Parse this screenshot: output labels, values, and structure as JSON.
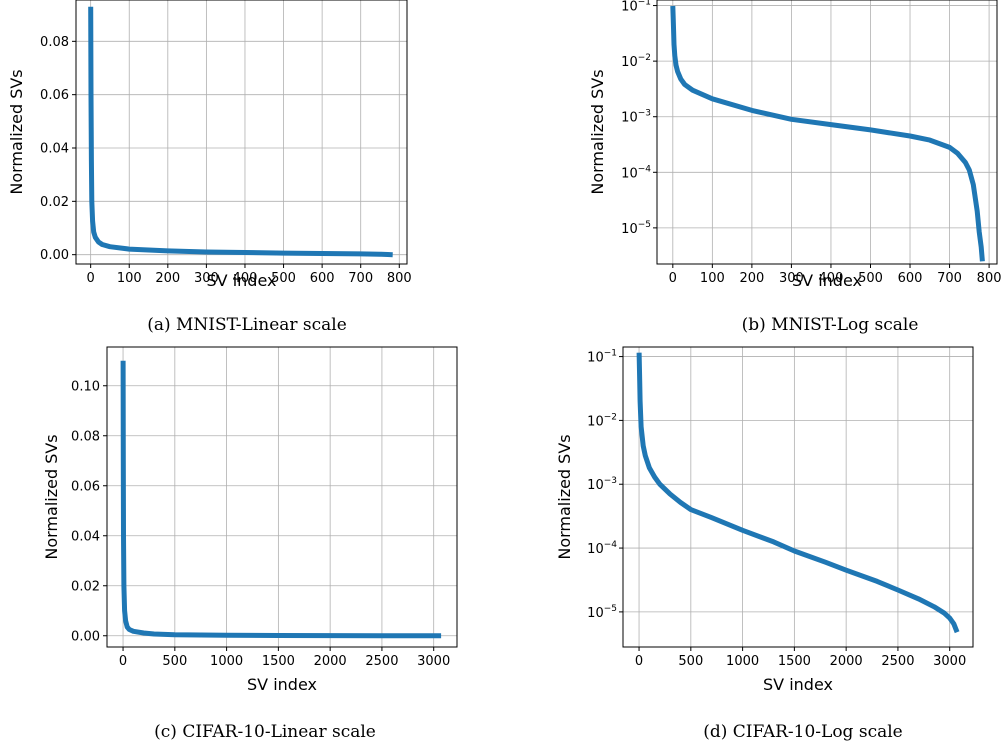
{
  "chart_data": [
    {
      "type": "line",
      "caption": "(a) MNIST-Linear scale",
      "xlabel": "SV index",
      "ylabel": "Normalized SVs",
      "yscale": "linear",
      "xlim": [
        -38,
        820
      ],
      "ylim": [
        -0.0035,
        0.0955
      ],
      "xticks": [
        0,
        100,
        200,
        300,
        400,
        500,
        600,
        700,
        800
      ],
      "xtick_labels": [
        "0",
        "100",
        "200",
        "300",
        "400",
        "500",
        "600",
        "700",
        "800"
      ],
      "yticks": [
        0.0,
        0.02,
        0.04,
        0.06,
        0.08
      ],
      "ytick_labels": [
        "0.00",
        "0.02",
        "0.04",
        "0.06",
        "0.08"
      ],
      "grid": true,
      "series": [
        {
          "color": "#1f77b4",
          "x": [
            0,
            1,
            2,
            3,
            5,
            8,
            12,
            20,
            30,
            50,
            100,
            200,
            300,
            400,
            500,
            600,
            700,
            750,
            770,
            783
          ],
          "y": [
            0.093,
            0.06,
            0.035,
            0.02,
            0.0125,
            0.0085,
            0.0065,
            0.0048,
            0.0038,
            0.003,
            0.0021,
            0.0014,
            0.001,
            0.0008,
            0.0006,
            0.00045,
            0.00028,
            0.00018,
            8e-05,
            2.5e-06
          ]
        }
      ]
    },
    {
      "type": "line",
      "caption": "(b) MNIST-Log scale",
      "xlabel": "SV index",
      "ylabel": "Normalized SVs",
      "yscale": "log",
      "xlim": [
        -40,
        820
      ],
      "ylim_log10": [
        -5.65,
        -0.9
      ],
      "xticks": [
        0,
        100,
        200,
        300,
        400,
        500,
        600,
        700,
        800
      ],
      "xtick_labels": [
        "0",
        "100",
        "200",
        "300",
        "400",
        "500",
        "600",
        "700",
        "800"
      ],
      "yticks_log10": [
        -5,
        -4,
        -3,
        -2,
        -1
      ],
      "ytick_base": "10",
      "ytick_exponents": [
        "−5",
        "−4",
        "−3",
        "−2",
        "−1"
      ],
      "grid": true,
      "series": [
        {
          "color": "#1f77b4",
          "x": [
            0,
            1,
            2,
            3,
            5,
            8,
            12,
            20,
            30,
            50,
            100,
            200,
            300,
            400,
            500,
            600,
            650,
            700,
            720,
            740,
            750,
            760,
            770,
            775,
            780,
            783
          ],
          "y": [
            0.098,
            0.06,
            0.035,
            0.02,
            0.0125,
            0.0085,
            0.0065,
            0.0048,
            0.0038,
            0.003,
            0.0021,
            0.0013,
            0.0009,
            0.00072,
            0.00058,
            0.00045,
            0.00038,
            0.00028,
            0.00022,
            0.00015,
            0.00011,
            6e-05,
            2e-05,
            8.5e-06,
            4.5e-06,
            2.5e-06
          ]
        }
      ]
    },
    {
      "type": "line",
      "caption": "(c) CIFAR-10-Linear scale",
      "xlabel": "SV index",
      "ylabel": "Normalized SVs",
      "yscale": "linear",
      "xlim": [
        -155,
        3225
      ],
      "ylim": [
        -0.0045,
        0.1155
      ],
      "xticks": [
        0,
        500,
        1000,
        1500,
        2000,
        2500,
        3000
      ],
      "xtick_labels": [
        "0",
        "500",
        "1000",
        "1500",
        "2000",
        "2500",
        "3000"
      ],
      "yticks": [
        0.0,
        0.02,
        0.04,
        0.06,
        0.08,
        0.1
      ],
      "ytick_labels": [
        "0.00",
        "0.02",
        "0.04",
        "0.06",
        "0.08",
        "0.10"
      ],
      "grid": true,
      "series": [
        {
          "color": "#1f77b4",
          "x": [
            0,
            2,
            4,
            8,
            15,
            25,
            40,
            60,
            100,
            200,
            300,
            500,
            1000,
            1500,
            2000,
            2500,
            3000,
            3071
          ],
          "y": [
            0.11,
            0.07,
            0.04,
            0.02,
            0.01,
            0.006,
            0.0035,
            0.0025,
            0.0018,
            0.0011,
            0.0007,
            0.0004,
            0.00018,
            9e-05,
            4e-05,
            1.8e-05,
            7e-06,
            5e-06
          ]
        }
      ]
    },
    {
      "type": "line",
      "caption": "(d) CIFAR-10-Log scale",
      "xlabel": "SV index",
      "ylabel": "Normalized SVs",
      "yscale": "log",
      "xlim": [
        -155,
        3225
      ],
      "ylim_log10": [
        -5.55,
        -0.85
      ],
      "xticks": [
        0,
        500,
        1000,
        1500,
        2000,
        2500,
        3000
      ],
      "xtick_labels": [
        "0",
        "500",
        "1000",
        "1500",
        "2000",
        "2500",
        "3000"
      ],
      "yticks_log10": [
        -5,
        -4,
        -3,
        -2,
        -1
      ],
      "ytick_base": "10",
      "ytick_exponents": [
        "−5",
        "−4",
        "−3",
        "−2",
        "−1"
      ],
      "grid": true,
      "series": [
        {
          "color": "#1f77b4",
          "x": [
            0,
            5,
            10,
            20,
            40,
            60,
            100,
            150,
            200,
            300,
            400,
            500,
            700,
            1000,
            1300,
            1500,
            1800,
            2000,
            2300,
            2500,
            2700,
            2850,
            2950,
            3000,
            3040,
            3071
          ],
          "y": [
            0.115,
            0.05,
            0.02,
            0.008,
            0.004,
            0.0028,
            0.0018,
            0.0013,
            0.001,
            0.0007,
            0.00052,
            0.0004,
            0.0003,
            0.00019,
            0.000125,
            9e-05,
            6e-05,
            4.5e-05,
            3e-05,
            2.2e-05,
            1.6e-05,
            1.2e-05,
            9.5e-06,
            8e-06,
            6.5e-06,
            4.8e-06
          ]
        }
      ]
    }
  ]
}
